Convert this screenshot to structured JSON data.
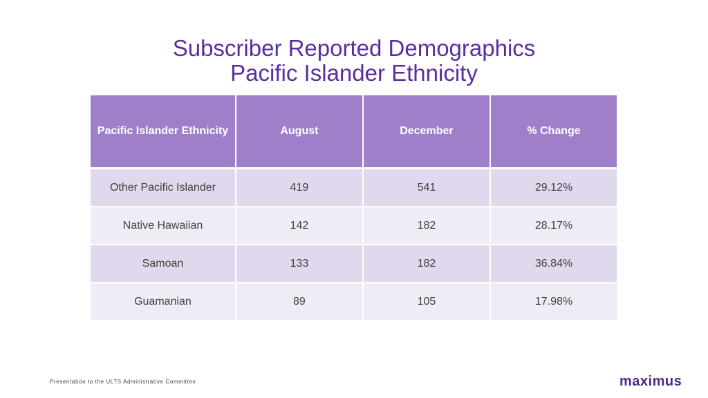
{
  "title": {
    "line1": "Subscriber Reported Demographics",
    "line2": "Pacific Islander Ethnicity"
  },
  "table": {
    "headers": [
      "Pacific Islander Ethnicity",
      "August",
      "December",
      "% Change"
    ],
    "rows": [
      [
        "Other Pacific Islander",
        "419",
        "541",
        "29.12%"
      ],
      [
        "Native Hawaiian",
        "142",
        "182",
        "28.17%"
      ],
      [
        "Samoan",
        "133",
        "182",
        "36.84%"
      ],
      [
        "Guamanian",
        "89",
        "105",
        "17.98%"
      ]
    ]
  },
  "footer": {
    "text": "Presentation to the ULTS Administrative Committee",
    "logo": "maximus"
  },
  "colors": {
    "title": "#5b2d9e",
    "header_bg": "#9f7fca",
    "row_odd": "#e0d8ec",
    "row_even": "#f0ecf6"
  }
}
